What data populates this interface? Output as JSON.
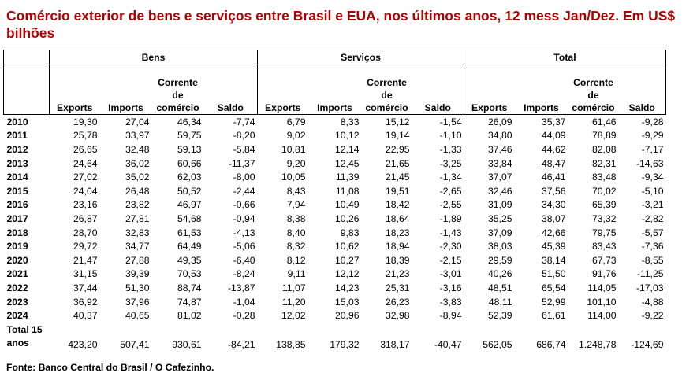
{
  "title": "Comércio exterior de bens e serviços entre Brasil e EUA, nos últimos anos, 12 mess Jan/Dez. Em US$ bilhões",
  "groups": [
    "Bens",
    "Serviços",
    "Total"
  ],
  "columns": {
    "exports": "Exports",
    "imports": "Imports",
    "corrente": "Corrente de comércio",
    "saldo": "Saldo"
  },
  "rows": [
    {
      "year": "2010",
      "cells": [
        "19,30",
        "27,04",
        "46,34",
        "-7,74",
        "6,79",
        "8,33",
        "15,12",
        "-1,54",
        "26,09",
        "35,37",
        "61,46",
        "-9,28"
      ]
    },
    {
      "year": "2011",
      "cells": [
        "25,78",
        "33,97",
        "59,75",
        "-8,20",
        "9,02",
        "10,12",
        "19,14",
        "-1,10",
        "34,80",
        "44,09",
        "78,89",
        "-9,29"
      ]
    },
    {
      "year": "2012",
      "cells": [
        "26,65",
        "32,48",
        "59,13",
        "-5,84",
        "10,81",
        "12,14",
        "22,95",
        "-1,33",
        "37,46",
        "44,62",
        "82,08",
        "-7,17"
      ]
    },
    {
      "year": "2013",
      "cells": [
        "24,64",
        "36,02",
        "60,66",
        "-11,37",
        "9,20",
        "12,45",
        "21,65",
        "-3,25",
        "33,84",
        "48,47",
        "82,31",
        "-14,63"
      ]
    },
    {
      "year": "2014",
      "cells": [
        "27,02",
        "35,02",
        "62,03",
        "-8,00",
        "10,05",
        "11,39",
        "21,45",
        "-1,34",
        "37,07",
        "46,41",
        "83,48",
        "-9,34"
      ]
    },
    {
      "year": "2015",
      "cells": [
        "24,04",
        "26,48",
        "50,52",
        "-2,44",
        "8,43",
        "11,08",
        "19,51",
        "-2,65",
        "32,46",
        "37,56",
        "70,02",
        "-5,10"
      ]
    },
    {
      "year": "2016",
      "cells": [
        "23,16",
        "23,82",
        "46,97",
        "-0,66",
        "7,94",
        "10,49",
        "18,42",
        "-2,55",
        "31,09",
        "34,30",
        "65,39",
        "-3,21"
      ]
    },
    {
      "year": "2017",
      "cells": [
        "26,87",
        "27,81",
        "54,68",
        "-0,94",
        "8,38",
        "10,26",
        "18,64",
        "-1,89",
        "35,25",
        "38,07",
        "73,32",
        "-2,82"
      ]
    },
    {
      "year": "2018",
      "cells": [
        "28,70",
        "32,83",
        "61,53",
        "-4,13",
        "8,40",
        "9,83",
        "18,23",
        "-1,43",
        "37,09",
        "42,66",
        "79,75",
        "-5,57"
      ]
    },
    {
      "year": "2019",
      "cells": [
        "29,72",
        "34,77",
        "64,49",
        "-5,06",
        "8,32",
        "10,62",
        "18,94",
        "-2,30",
        "38,03",
        "45,39",
        "83,43",
        "-7,36"
      ]
    },
    {
      "year": "2020",
      "cells": [
        "21,47",
        "27,88",
        "49,35",
        "-6,40",
        "8,12",
        "10,27",
        "18,39",
        "-2,15",
        "29,59",
        "38,14",
        "67,73",
        "-8,55"
      ]
    },
    {
      "year": "2021",
      "cells": [
        "31,15",
        "39,39",
        "70,53",
        "-8,24",
        "9,11",
        "12,12",
        "21,23",
        "-3,01",
        "40,26",
        "51,50",
        "91,76",
        "-11,25"
      ]
    },
    {
      "year": "2022",
      "cells": [
        "37,44",
        "51,30",
        "88,74",
        "-13,87",
        "11,07",
        "14,23",
        "25,31",
        "-3,16",
        "48,51",
        "65,54",
        "114,05",
        "-17,03"
      ]
    },
    {
      "year": "2023",
      "cells": [
        "36,92",
        "37,96",
        "74,87",
        "-1,04",
        "11,20",
        "15,03",
        "26,23",
        "-3,83",
        "48,11",
        "52,99",
        "101,10",
        "-4,88"
      ]
    },
    {
      "year": "2024",
      "cells": [
        "40,37",
        "40,65",
        "81,02",
        "-0,28",
        "12,02",
        "20,96",
        "32,98",
        "-8,94",
        "52,39",
        "61,61",
        "114,00",
        "-9,22"
      ]
    }
  ],
  "total": {
    "label_line1": "Total 15",
    "label_line2": "anos",
    "cells": [
      "423,20",
      "507,41",
      "930,61",
      "-84,21",
      "138,85",
      "179,32",
      "318,17",
      "-40,47",
      "562,05",
      "686,74",
      "1.248,78",
      "-124,69"
    ]
  },
  "source": "Fonte: Banco Central do Brasil / O Cafezinho."
}
